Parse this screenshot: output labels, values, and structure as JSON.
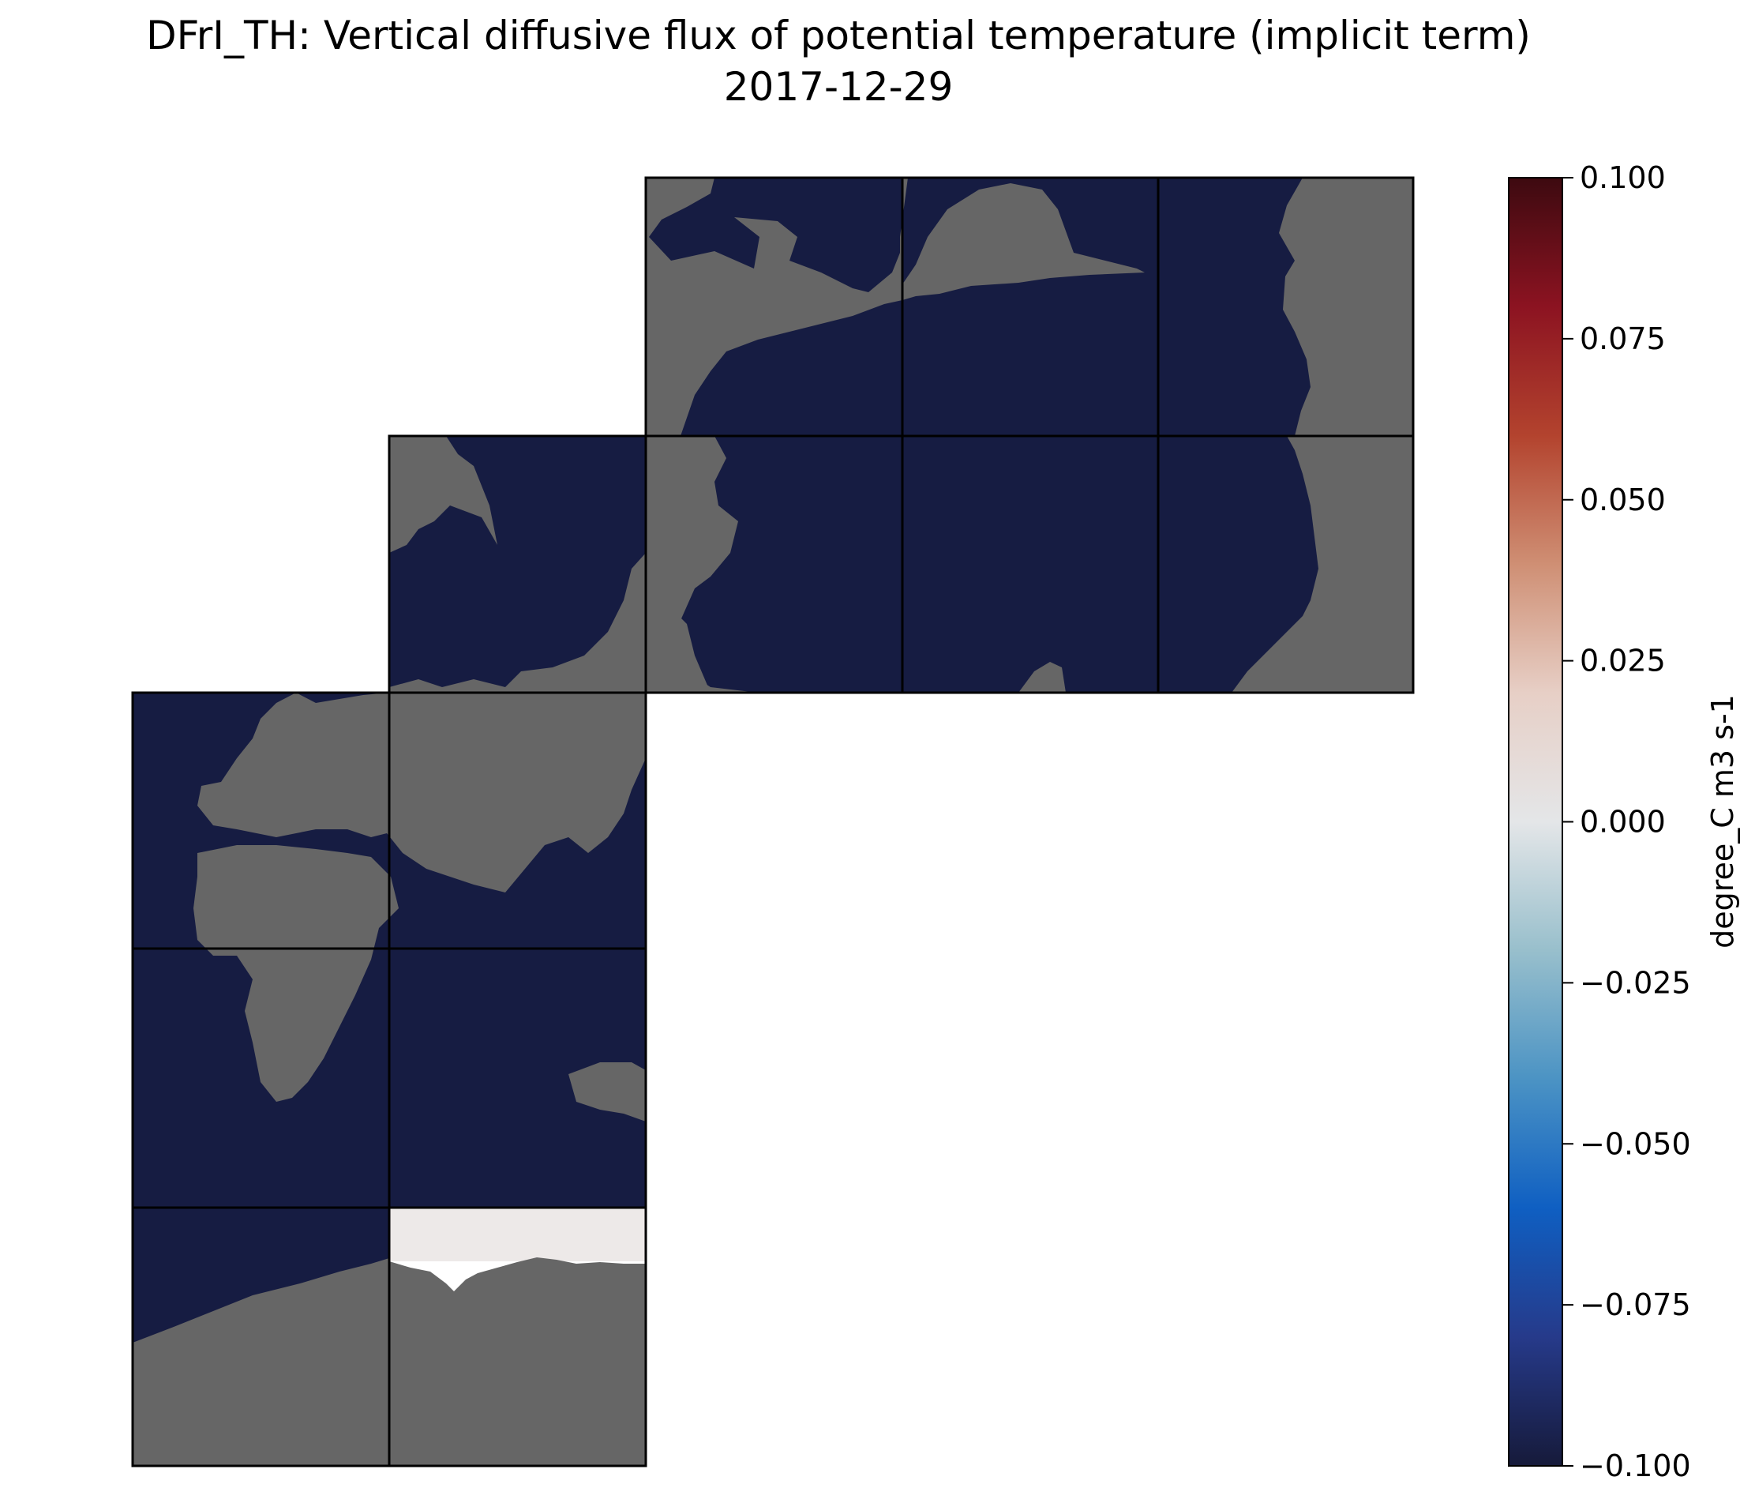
{
  "title": {
    "line1": "DFrI_TH: Vertical diffusive flux of potential temperature (implicit term)",
    "line2": "2017-12-29"
  },
  "colorbar": {
    "label": "degree_C m3 s-1",
    "ticks": [
      "0.100",
      "0.075",
      "0.050",
      "0.025",
      "0.000",
      "−0.025",
      "−0.050",
      "−0.075",
      "−0.100"
    ],
    "tick_values": [
      0.1,
      0.075,
      0.05,
      0.025,
      0.0,
      -0.025,
      -0.05,
      -0.075,
      -0.1
    ],
    "range": [
      -0.1,
      0.1
    ],
    "colormap": [
      "#161a3a",
      "#263a8a",
      "#0f5fc2",
      "#4b93c4",
      "#98bfcc",
      "#e4e6e8",
      "#e7cfc6",
      "#cf8f74",
      "#b3432e",
      "#8c1321",
      "#3d0a10"
    ]
  },
  "map": {
    "layout": "cube-sphere faces (LLC) arranged in staircase",
    "colors": {
      "ocean": "#161c42",
      "land": "#666666",
      "ocean_near_zero": "#ede9e8",
      "grid": "#000000"
    }
  }
}
